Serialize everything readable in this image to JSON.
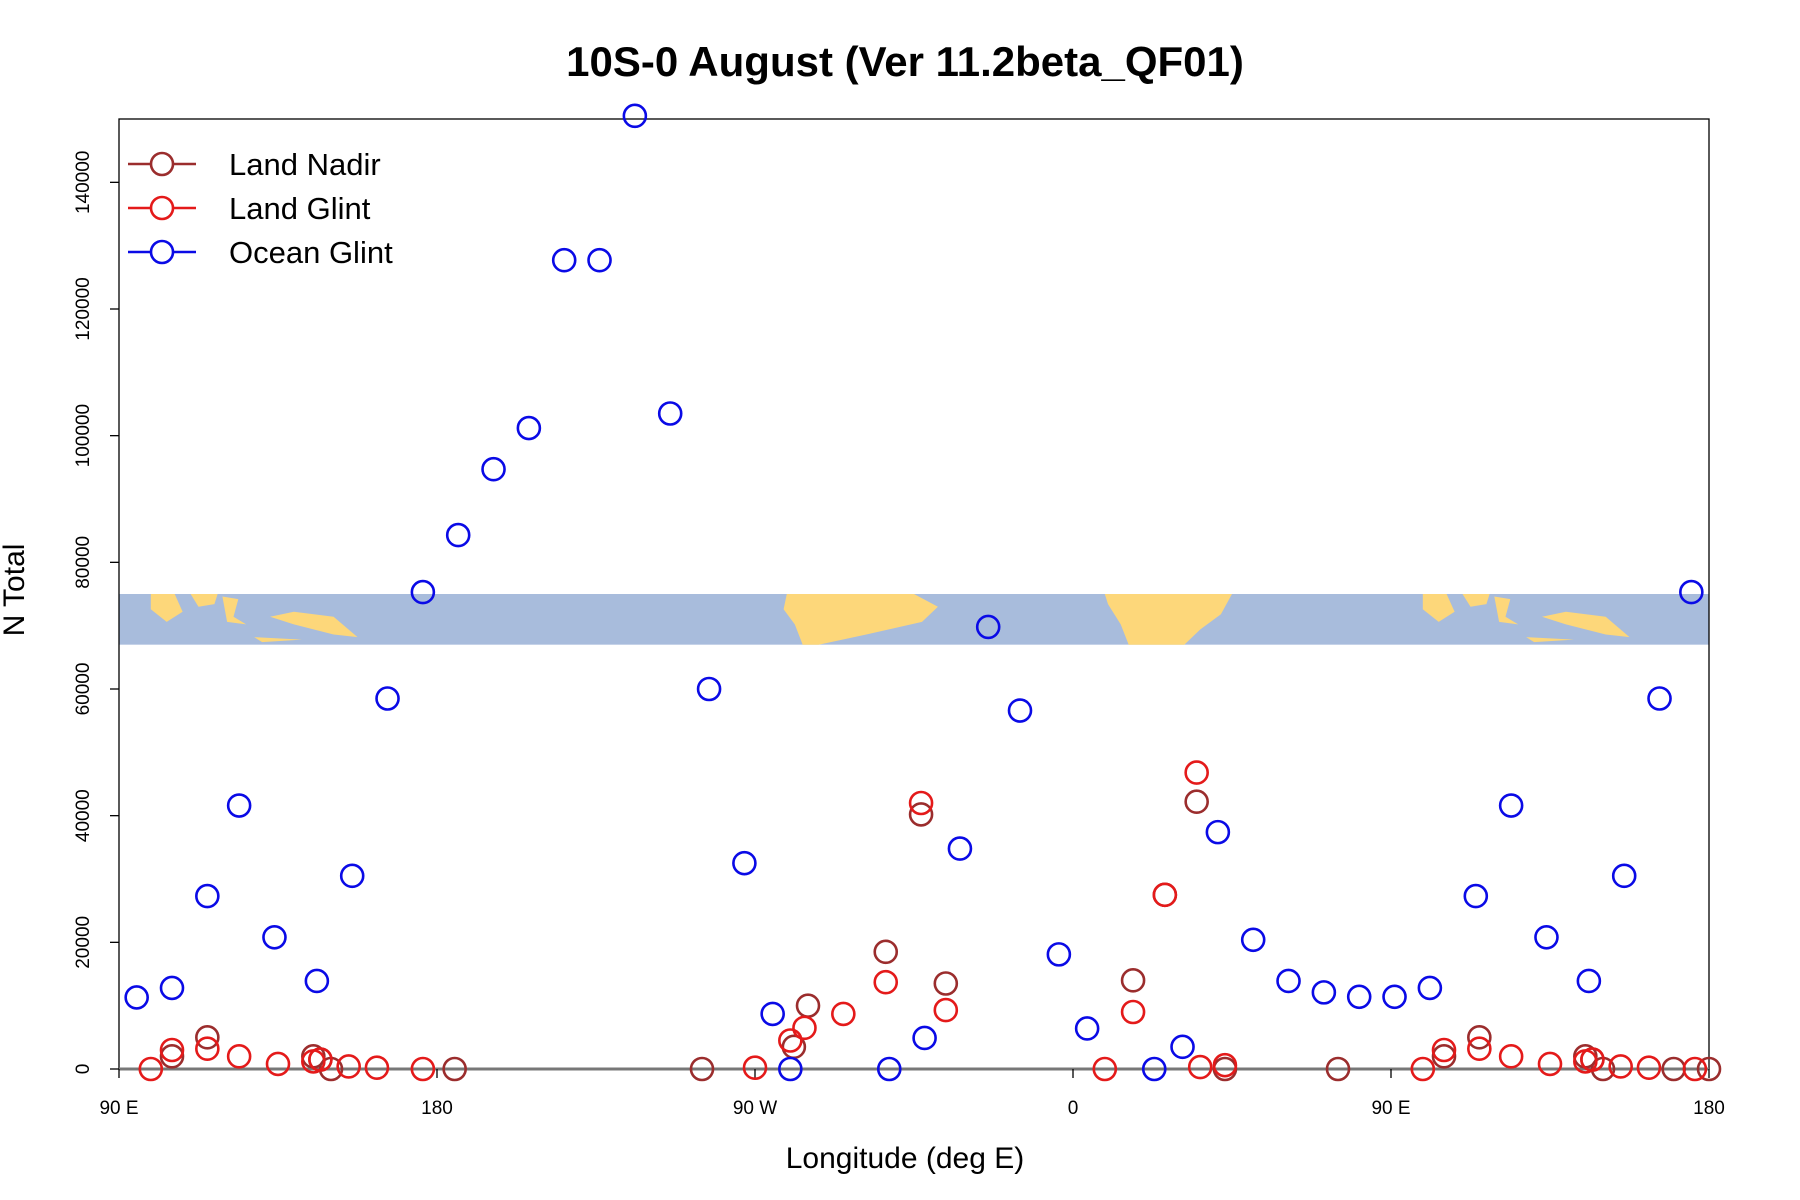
{
  "chart_data": {
    "type": "scatter",
    "title": "10S-0 August (Ver 11.2beta_QF01)",
    "xlabel": "Longitude (deg E)",
    "ylabel": "N Total",
    "x_unit_note": "continuous longitude, wrapping 90 E through 180 and 0 to 180 again",
    "xlim": [
      90,
      540
    ],
    "ylim": [
      0,
      150000
    ],
    "x_ticks": [
      {
        "value": 90,
        "label": "90 E"
      },
      {
        "value": 180,
        "label": "180"
      },
      {
        "value": 270,
        "label": "90 W"
      },
      {
        "value": 360,
        "label": "0"
      },
      {
        "value": 450,
        "label": "90 E"
      },
      {
        "value": 540,
        "label": "180"
      }
    ],
    "y_ticks": [
      {
        "value": 0,
        "label": "0"
      },
      {
        "value": 20000,
        "label": "20000"
      },
      {
        "value": 40000,
        "label": "40000"
      },
      {
        "value": 60000,
        "label": "60000"
      },
      {
        "value": 80000,
        "label": "80000"
      },
      {
        "value": 100000,
        "label": "100000"
      },
      {
        "value": 120000,
        "label": "120000"
      },
      {
        "value": 140000,
        "label": "140000"
      }
    ],
    "legend_position": "top-left",
    "grid": false,
    "inset": {
      "description": "world map strip 10S-0",
      "y_range": [
        67000,
        75000
      ],
      "ocean_color": "#a8bcdc",
      "land_color": "#fdd77a"
    },
    "series": [
      {
        "name": "Land Nadir",
        "color": "#9b2d2d",
        "points": [
          [
            105,
            2000
          ],
          [
            115,
            5000
          ],
          [
            145,
            2000
          ],
          [
            147,
            1500
          ],
          [
            150,
            0
          ],
          [
            185,
            0
          ],
          [
            255,
            0
          ],
          [
            281,
            3500
          ],
          [
            285,
            10000
          ],
          [
            307,
            18500
          ],
          [
            317,
            40200
          ],
          [
            324,
            13500
          ],
          [
            377,
            14000
          ],
          [
            386,
            27500
          ],
          [
            395,
            42200
          ],
          [
            403,
            0
          ],
          [
            435,
            0
          ],
          [
            465,
            2000
          ],
          [
            475,
            5000
          ],
          [
            505,
            2000
          ],
          [
            507,
            1500
          ],
          [
            510,
            0
          ],
          [
            530,
            0
          ],
          [
            540,
            0
          ]
        ]
      },
      {
        "name": "Land Glint",
        "color": "#e41a1a",
        "points": [
          [
            99,
            0
          ],
          [
            105,
            3000
          ],
          [
            115,
            3200
          ],
          [
            124,
            2000
          ],
          [
            135,
            800
          ],
          [
            145,
            1200
          ],
          [
            147,
            1500
          ],
          [
            155,
            400
          ],
          [
            163,
            200
          ],
          [
            176,
            0
          ],
          [
            270,
            200
          ],
          [
            280,
            4500
          ],
          [
            284,
            6500
          ],
          [
            295,
            8700
          ],
          [
            307,
            13700
          ],
          [
            317,
            42000
          ],
          [
            324,
            9300
          ],
          [
            369,
            0
          ],
          [
            377,
            9000
          ],
          [
            386,
            27500
          ],
          [
            395,
            46800
          ],
          [
            396,
            300
          ],
          [
            403,
            600
          ],
          [
            459,
            0
          ],
          [
            465,
            3000
          ],
          [
            475,
            3200
          ],
          [
            484,
            2000
          ],
          [
            495,
            800
          ],
          [
            505,
            1200
          ],
          [
            507,
            1500
          ],
          [
            515,
            400
          ],
          [
            523,
            200
          ],
          [
            536,
            0
          ]
        ]
      },
      {
        "name": "Ocean Glint",
        "color": "#0a0ae6",
        "points": [
          [
            95,
            11300
          ],
          [
            105,
            12800
          ],
          [
            115,
            27300
          ],
          [
            124,
            41600
          ],
          [
            134,
            20800
          ],
          [
            146,
            13900
          ],
          [
            156,
            30500
          ],
          [
            166,
            58500
          ],
          [
            176,
            75300
          ],
          [
            186,
            84300
          ],
          [
            196,
            94700
          ],
          [
            206,
            101200
          ],
          [
            216,
            127700
          ],
          [
            226,
            127700
          ],
          [
            236,
            150500
          ],
          [
            246,
            103500
          ],
          [
            257,
            60000
          ],
          [
            267,
            32500
          ],
          [
            275,
            8700
          ],
          [
            280,
            0
          ],
          [
            308,
            0
          ],
          [
            318,
            4900
          ],
          [
            328,
            34800
          ],
          [
            336,
            69800
          ],
          [
            345,
            56600
          ],
          [
            356,
            18100
          ],
          [
            364,
            6400
          ],
          [
            383,
            0
          ],
          [
            391,
            3500
          ],
          [
            401,
            37400
          ],
          [
            411,
            20400
          ],
          [
            421,
            13900
          ],
          [
            431,
            12100
          ],
          [
            441,
            11400
          ],
          [
            451,
            11400
          ],
          [
            461,
            12800
          ],
          [
            474,
            27300
          ],
          [
            484,
            41600
          ],
          [
            494,
            20800
          ],
          [
            506,
            13900
          ],
          [
            516,
            30500
          ],
          [
            526,
            58500
          ],
          [
            535,
            75300
          ]
        ]
      }
    ]
  }
}
